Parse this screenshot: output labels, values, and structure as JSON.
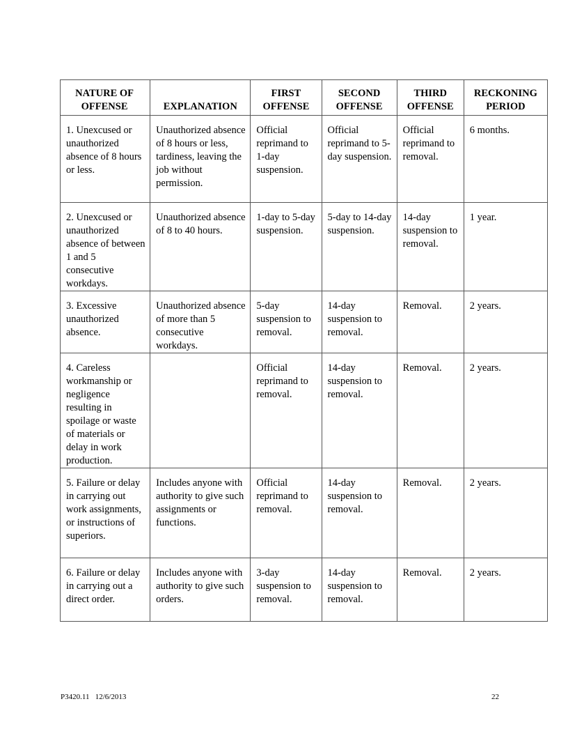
{
  "table": {
    "headers": [
      "NATURE OF OFFENSE",
      "EXPLANATION",
      "FIRST OFFENSE",
      "SECOND OFFENSE",
      "THIRD OFFENSE",
      "RECKONING PERIOD"
    ],
    "rows": [
      [
        "1. Unexcused or unauthorized absence of 8 hours or less.",
        "Unauthorized absence of 8 hours or less, tardiness, leaving the job without permission.",
        "Official reprimand to 1-day suspension.",
        "Official reprimand to 5-day suspension.",
        "Official reprimand to removal.",
        "6 months."
      ],
      [
        "2. Unexcused or unauthorized absence of between 1 and 5 consecutive workdays.",
        "Unauthorized absence of 8 to 40 hours.",
        "1-day to 5-day suspension.",
        "5-day to 14-day suspension.",
        "14-day suspension to removal.",
        "1 year."
      ],
      [
        "3. Excessive unauthorized absence.",
        "Unauthorized absence of more than 5 consecutive workdays.",
        "5-day suspension to removal.",
        "14-day suspension to removal.",
        "Removal.",
        "2 years."
      ],
      [
        "4. Careless workmanship or negligence resulting in spoilage or waste of materials or delay in work production.",
        "",
        "Official reprimand to removal.",
        "14-day suspension to removal.",
        "Removal.",
        "2 years."
      ],
      [
        "5. Failure or delay in carrying out work assignments, or instructions of superiors.",
        "Includes anyone with authority to give such assignments or functions.",
        "Official reprimand to removal.",
        "14-day suspension to removal.",
        "Removal.",
        "2 years."
      ],
      [
        "6. Failure or delay in carrying out a direct order.",
        "Includes anyone with authority to give such orders.",
        "3-day suspension to removal.",
        "14-day suspension to removal.",
        "Removal.",
        "2 years."
      ]
    ]
  },
  "footer": {
    "doc_id": "P3420.11   12/6/2013",
    "page_number": "22"
  }
}
